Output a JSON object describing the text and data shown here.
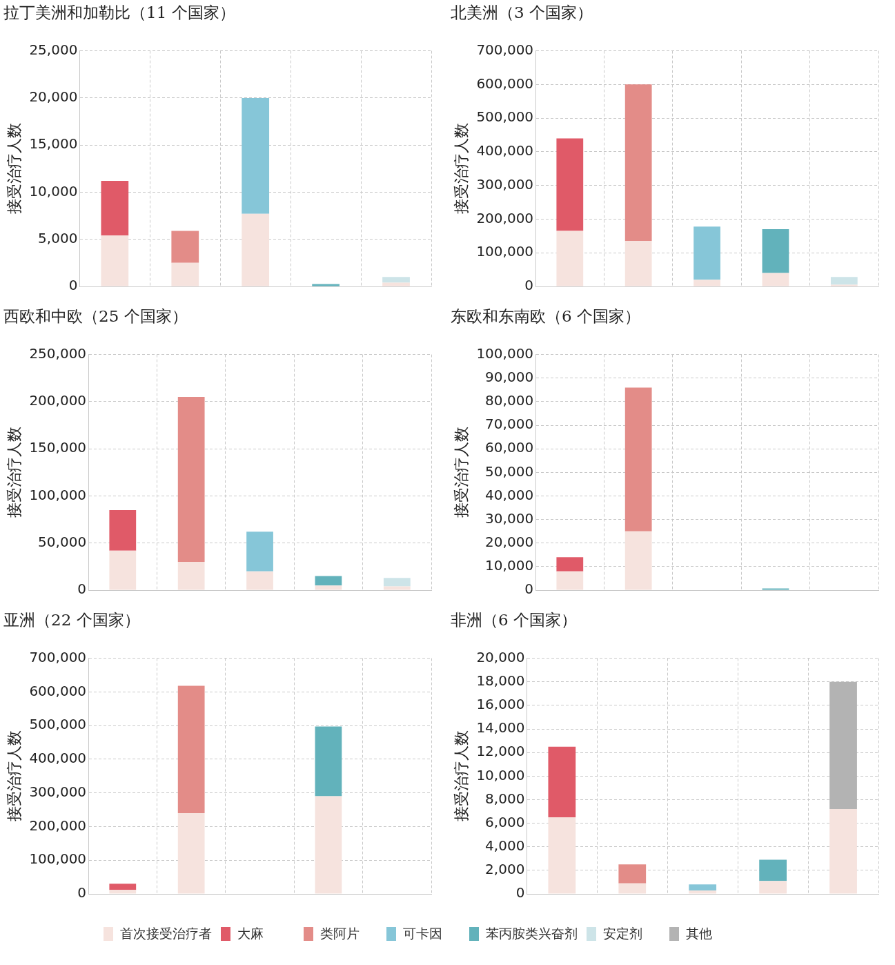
{
  "chart_data": [
    {
      "type": "bar",
      "title": "拉丁美洲和加勒比（11 个国家）",
      "ylabel": "接受治疗人数",
      "categories": [
        null,
        null,
        null,
        null,
        null
      ],
      "stacked": true,
      "grid": true,
      "legend": "bottom",
      "tick_labels": "y",
      "ylim": [
        0,
        25000
      ],
      "yticks": [
        {
          "value": 0,
          "label": "0"
        },
        {
          "value": 5000,
          "label": "5,000"
        },
        {
          "value": 10000,
          "label": "10,000"
        },
        {
          "value": 15000,
          "label": "15,000"
        },
        {
          "value": 20000,
          "label": "20,000"
        },
        {
          "value": 25000,
          "label": "25,000"
        }
      ],
      "series": [
        {
          "name": "首次接受治疗者",
          "color": "#f6e3de",
          "values": [
            5400,
            2500,
            7700,
            null,
            400
          ]
        },
        {
          "name": "大麻",
          "color": "#e05a68",
          "values": [
            5800,
            null,
            null,
            null,
            null
          ]
        },
        {
          "name": "类阿片",
          "color": "#e38c88",
          "values": [
            null,
            3400,
            null,
            null,
            null
          ]
        },
        {
          "name": "可卡因",
          "color": "#86c6d8",
          "values": [
            null,
            null,
            12300,
            null,
            null
          ]
        },
        {
          "name": "苯丙胺类兴奋剂",
          "color": "#62b2bb",
          "values": [
            null,
            null,
            null,
            250,
            null
          ]
        },
        {
          "name": "安定剂",
          "color": "#cde4e8",
          "values": [
            null,
            null,
            null,
            null,
            600
          ]
        }
      ]
    },
    {
      "type": "bar",
      "title": "北美洲（3 个国家）",
      "ylabel": "接受治疗人数",
      "categories": [
        null,
        null,
        null,
        null,
        null
      ],
      "stacked": true,
      "grid": true,
      "legend": "bottom",
      "tick_labels": "y",
      "ylim": [
        0,
        700000
      ],
      "yticks": [
        {
          "value": 0,
          "label": "0"
        },
        {
          "value": 100000,
          "label": "100,000"
        },
        {
          "value": 200000,
          "label": "200,000"
        },
        {
          "value": 300000,
          "label": "300,000"
        },
        {
          "value": 400000,
          "label": "400,000"
        },
        {
          "value": 500000,
          "label": "500,000"
        },
        {
          "value": 600000,
          "label": "600,000"
        },
        {
          "value": 700000,
          "label": "700,000"
        }
      ],
      "series": [
        {
          "name": "首次接受治疗者",
          "color": "#f6e3de",
          "values": [
            165000,
            135000,
            20000,
            40000,
            5000
          ]
        },
        {
          "name": "大麻",
          "color": "#e05a68",
          "values": [
            275000,
            null,
            null,
            null,
            null
          ]
        },
        {
          "name": "类阿片",
          "color": "#e38c88",
          "values": [
            null,
            465000,
            null,
            null,
            null
          ]
        },
        {
          "name": "可卡因",
          "color": "#86c6d8",
          "values": [
            null,
            null,
            158000,
            null,
            null
          ]
        },
        {
          "name": "苯丙胺类兴奋剂",
          "color": "#62b2bb",
          "values": [
            null,
            null,
            null,
            130000,
            null
          ]
        },
        {
          "name": "安定剂",
          "color": "#cde4e8",
          "values": [
            null,
            null,
            null,
            null,
            23000
          ]
        }
      ]
    },
    {
      "type": "bar",
      "title": "西欧和中欧（25 个国家）",
      "ylabel": "接受治疗人数",
      "categories": [
        null,
        null,
        null,
        null,
        null
      ],
      "stacked": true,
      "grid": true,
      "legend": "bottom",
      "tick_labels": "y",
      "ylim": [
        0,
        250000
      ],
      "yticks": [
        {
          "value": 0,
          "label": "0"
        },
        {
          "value": 50000,
          "label": "50,000"
        },
        {
          "value": 100000,
          "label": "100,000"
        },
        {
          "value": 150000,
          "label": "150,000"
        },
        {
          "value": 200000,
          "label": "200,000"
        },
        {
          "value": 250000,
          "label": "250,000"
        }
      ],
      "series": [
        {
          "name": "首次接受治疗者",
          "color": "#f6e3de",
          "values": [
            42000,
            30000,
            20000,
            5000,
            4000
          ]
        },
        {
          "name": "大麻",
          "color": "#e05a68",
          "values": [
            43000,
            null,
            null,
            null,
            null
          ]
        },
        {
          "name": "类阿片",
          "color": "#e38c88",
          "values": [
            null,
            175000,
            null,
            null,
            null
          ]
        },
        {
          "name": "可卡因",
          "color": "#86c6d8",
          "values": [
            null,
            null,
            42000,
            null,
            null
          ]
        },
        {
          "name": "苯丙胺类兴奋剂",
          "color": "#62b2bb",
          "values": [
            null,
            null,
            null,
            10000,
            null
          ]
        },
        {
          "name": "安定剂",
          "color": "#cde4e8",
          "values": [
            null,
            null,
            null,
            null,
            9000
          ]
        }
      ]
    },
    {
      "type": "bar",
      "title": "东欧和东南欧（6 个国家）",
      "ylabel": "接受治疗人数",
      "categories": [
        null,
        null,
        null,
        null,
        null
      ],
      "stacked": true,
      "grid": true,
      "legend": "bottom",
      "tick_labels": "y",
      "ylim": [
        0,
        100000
      ],
      "yticks": [
        {
          "value": 0,
          "label": "0"
        },
        {
          "value": 10000,
          "label": "10,000"
        },
        {
          "value": 20000,
          "label": "20,000"
        },
        {
          "value": 30000,
          "label": "30,000"
        },
        {
          "value": 40000,
          "label": "40,000"
        },
        {
          "value": 50000,
          "label": "50,000"
        },
        {
          "value": 60000,
          "label": "60,000"
        },
        {
          "value": 70000,
          "label": "70,000"
        },
        {
          "value": 80000,
          "label": "80,000"
        },
        {
          "value": 90000,
          "label": "90,000"
        },
        {
          "value": 100000,
          "label": "100,000"
        }
      ],
      "series": [
        {
          "name": "首次接受治疗者",
          "color": "#f6e3de",
          "values": [
            8000,
            25000,
            null,
            null,
            null
          ]
        },
        {
          "name": "大麻",
          "color": "#e05a68",
          "values": [
            6000,
            null,
            null,
            null,
            null
          ]
        },
        {
          "name": "类阿片",
          "color": "#e38c88",
          "values": [
            null,
            61000,
            null,
            null,
            null
          ]
        },
        {
          "name": "苯丙胺类兴奋剂",
          "color": "#62b2bb",
          "values": [
            null,
            null,
            null,
            700,
            null
          ]
        }
      ]
    },
    {
      "type": "bar",
      "title": "亚洲（22 个国家）",
      "ylabel": "接受治疗人数",
      "categories": [
        null,
        null,
        null,
        null,
        null
      ],
      "stacked": true,
      "grid": true,
      "legend": "bottom",
      "tick_labels": "y",
      "ylim": [
        0,
        700000
      ],
      "yticks": [
        {
          "value": 0,
          "label": "0"
        },
        {
          "value": 100000,
          "label": "100,000"
        },
        {
          "value": 200000,
          "label": "200,000"
        },
        {
          "value": 300000,
          "label": "300,000"
        },
        {
          "value": 400000,
          "label": "400,000"
        },
        {
          "value": 500000,
          "label": "500,000"
        },
        {
          "value": 600000,
          "label": "600,000"
        },
        {
          "value": 700000,
          "label": "700,000"
        }
      ],
      "series": [
        {
          "name": "首次接受治疗者",
          "color": "#f6e3de",
          "values": [
            12000,
            240000,
            null,
            290000,
            null
          ]
        },
        {
          "name": "大麻",
          "color": "#e05a68",
          "values": [
            18000,
            null,
            null,
            null,
            null
          ]
        },
        {
          "name": "类阿片",
          "color": "#e38c88",
          "values": [
            null,
            378000,
            null,
            null,
            null
          ]
        },
        {
          "name": "苯丙胺类兴奋剂",
          "color": "#62b2bb",
          "values": [
            null,
            null,
            null,
            207000,
            null
          ]
        }
      ]
    },
    {
      "type": "bar",
      "title": "非洲（6 个国家）",
      "ylabel": "接受治疗人数",
      "categories": [
        null,
        null,
        null,
        null,
        null
      ],
      "stacked": true,
      "grid": true,
      "legend": "bottom",
      "tick_labels": "y",
      "ylim": [
        0,
        20000
      ],
      "yticks": [
        {
          "value": 0,
          "label": "0"
        },
        {
          "value": 2000,
          "label": "2,000"
        },
        {
          "value": 4000,
          "label": "4,000"
        },
        {
          "value": 6000,
          "label": "6,000"
        },
        {
          "value": 8000,
          "label": "8,000"
        },
        {
          "value": 10000,
          "label": "10,000"
        },
        {
          "value": 12000,
          "label": "12,000"
        },
        {
          "value": 14000,
          "label": "14,000"
        },
        {
          "value": 16000,
          "label": "16,000"
        },
        {
          "value": 18000,
          "label": "18,000"
        },
        {
          "value": 20000,
          "label": "20,000"
        }
      ],
      "series": [
        {
          "name": "首次接受治疗者",
          "color": "#f6e3de",
          "values": [
            6500,
            900,
            300,
            1100,
            7200
          ]
        },
        {
          "name": "大麻",
          "color": "#e05a68",
          "values": [
            6000,
            null,
            null,
            null,
            null
          ]
        },
        {
          "name": "类阿片",
          "color": "#e38c88",
          "values": [
            null,
            1600,
            null,
            null,
            null
          ]
        },
        {
          "name": "可卡因",
          "color": "#86c6d8",
          "values": [
            null,
            null,
            500,
            null,
            null
          ]
        },
        {
          "name": "苯丙胺类兴奋剂",
          "color": "#62b2bb",
          "values": [
            null,
            null,
            null,
            1800,
            null
          ]
        },
        {
          "name": "其他",
          "color": "#b3b3b3",
          "values": [
            null,
            null,
            null,
            null,
            10800
          ]
        }
      ]
    }
  ]
}
